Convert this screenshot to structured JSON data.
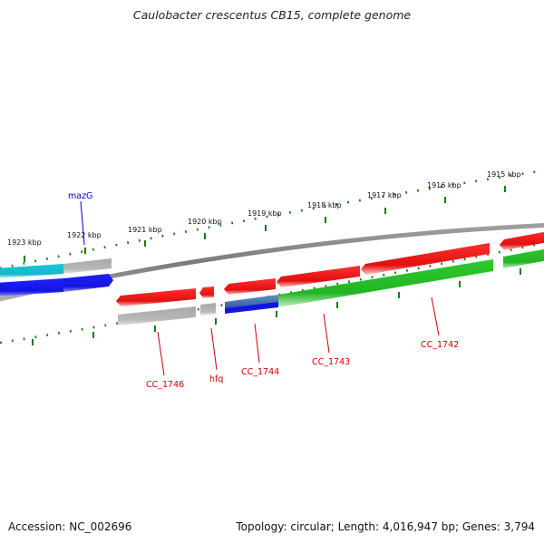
{
  "title": "Caulobacter crescentus CB15, complete genome",
  "footer": {
    "accession": "Accession: NC_002696",
    "summary": "Topology: circular; Length: 4,016,947 bp; Genes: 3,794"
  },
  "scale_labels": [
    "1923 kbp",
    "1922 kbp",
    "1921 kbp",
    "1920 kbp",
    "1919 kbp",
    "1918 kbp",
    "1917 kbp",
    "1916 kbp",
    "1915 kbp"
  ],
  "gene_labels": [
    "mazG",
    "CC_1746",
    "hfq",
    "CC_1744",
    "CC_1743",
    "CC_1742"
  ],
  "colors": {
    "forward_cds": "#e01010",
    "reverse_cds": "#22b522",
    "forward_gene": "#14b8c8",
    "reverse_gene": "#1414e0",
    "other_feature": "#b8b8b8",
    "backbone": "#808080",
    "tick": "#1a7a1a",
    "highlight_label": "#0000cc",
    "label": "#cc0000"
  }
}
